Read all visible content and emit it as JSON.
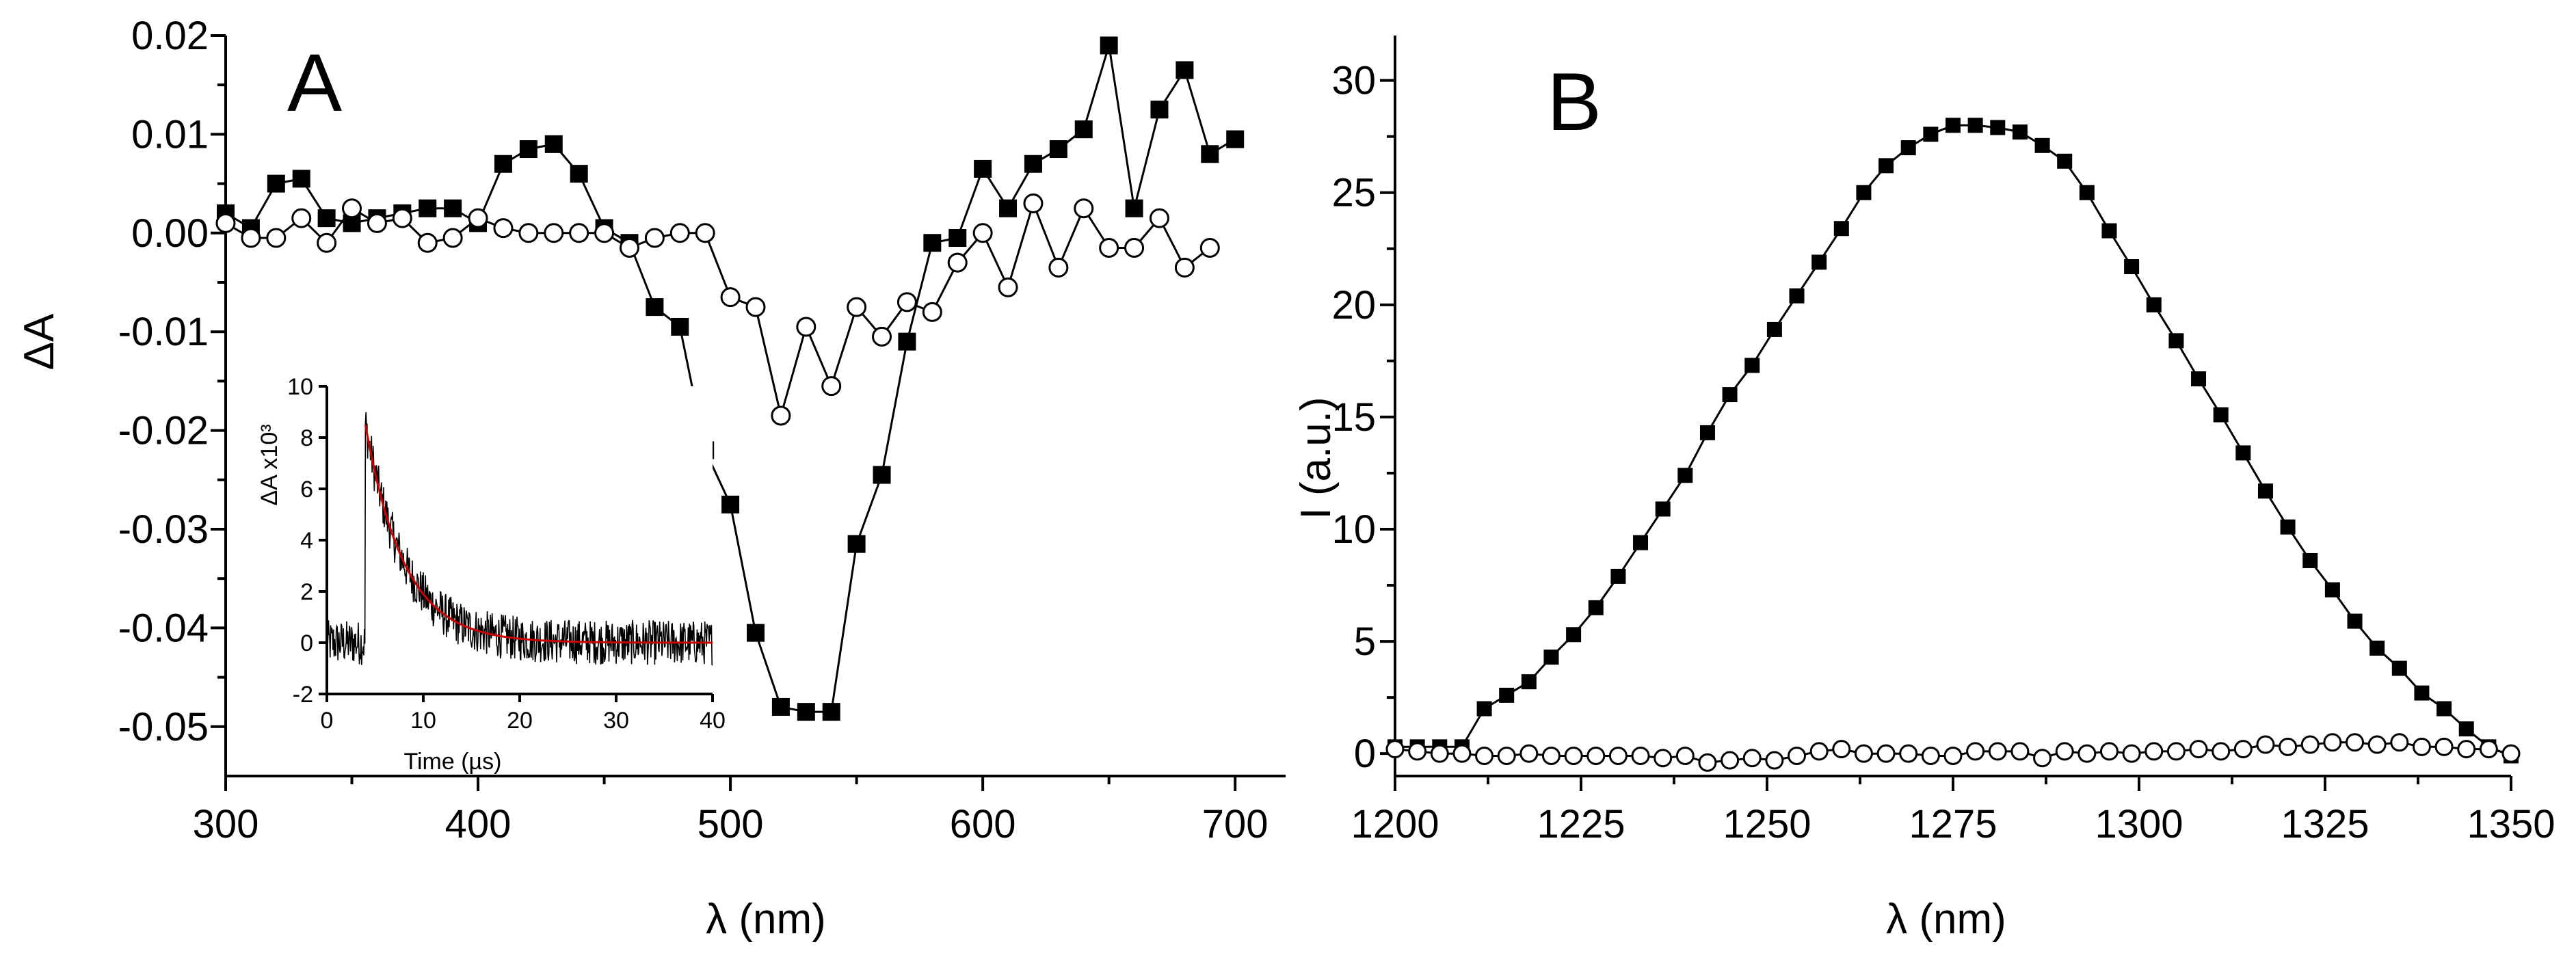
{
  "chart_data": [
    {
      "panel": "A",
      "type": "line",
      "title": "A",
      "xlabel": "λ (nm)",
      "ylabel": "ΔA",
      "xlim": [
        300,
        720
      ],
      "ylim": [
        -0.055,
        0.02
      ],
      "xticks": [
        300,
        400,
        500,
        600,
        700
      ],
      "yticks": [
        0.02,
        0.01,
        0.0,
        -0.01,
        -0.02,
        -0.03,
        -0.04,
        -0.05
      ],
      "xtick_labels": [
        "300",
        "400",
        "500",
        "600",
        "700"
      ],
      "ytick_labels": [
        "0.02",
        "0.01",
        "0.00",
        "-0.01",
        "-0.02",
        "-0.03",
        "-0.04",
        "-0.05"
      ],
      "series": [
        {
          "name": "filled squares",
          "marker": "filled-square",
          "x": [
            300,
            310,
            320,
            330,
            340,
            350,
            360,
            370,
            380,
            390,
            400,
            410,
            420,
            430,
            440,
            450,
            460,
            470,
            480,
            490,
            500,
            510,
            520,
            530,
            540,
            550,
            560,
            570,
            580,
            590,
            600,
            610,
            620,
            630,
            640,
            650,
            660,
            670,
            680,
            690,
            700
          ],
          "y": [
            0.002,
            0.0005,
            0.005,
            0.0055,
            0.0015,
            0.001,
            0.0015,
            0.002,
            0.0025,
            0.0025,
            0.001,
            0.007,
            0.0085,
            0.009,
            0.006,
            0.0005,
            -0.001,
            -0.0075,
            -0.0095,
            -0.022,
            -0.0275,
            -0.0405,
            -0.048,
            -0.0485,
            -0.0485,
            -0.0315,
            -0.0245,
            -0.011,
            -0.001,
            -0.0005,
            0.0065,
            0.0025,
            0.007,
            0.0085,
            0.0105,
            0.019,
            0.0025,
            0.0125,
            0.0165,
            0.008,
            0.0095
          ]
        },
        {
          "name": "open circles",
          "marker": "open-circle",
          "x": [
            300,
            310,
            320,
            330,
            340,
            350,
            360,
            370,
            380,
            390,
            400,
            410,
            420,
            430,
            440,
            450,
            460,
            470,
            480,
            490,
            500,
            510,
            520,
            530,
            540,
            550,
            560,
            570,
            580,
            590,
            600,
            610,
            620,
            630,
            640,
            650,
            660,
            670,
            680,
            690
          ],
          "y": [
            0.001,
            -0.0005,
            -0.0005,
            0.0015,
            -0.001,
            0.0025,
            0.001,
            0.0015,
            -0.001,
            -0.0005,
            0.0015,
            0.0005,
            0.0,
            0.0,
            0.0,
            0.0,
            -0.0015,
            -0.0005,
            0.0,
            0.0,
            -0.0065,
            -0.0075,
            -0.0185,
            -0.0095,
            -0.0155,
            -0.0075,
            -0.0105,
            -0.007,
            -0.008,
            -0.003,
            -0.0,
            -0.0055,
            0.003,
            -0.0035,
            0.0025,
            -0.0015,
            -0.0015,
            0.0015,
            -0.0035,
            -0.0015
          ]
        }
      ],
      "inset": {
        "type": "line",
        "xlabel": "Time (µs)",
        "ylabel": "ΔA x10³",
        "xlim": [
          0,
          40
        ],
        "ylim": [
          -2,
          10
        ],
        "xticks": [
          0,
          10,
          20,
          30,
          40
        ],
        "yticks": [
          -2,
          0,
          2,
          4,
          6,
          8,
          10
        ],
        "xtick_labels": [
          "0",
          "10",
          "20",
          "30",
          "40"
        ],
        "ytick_labels": [
          "-2",
          "0",
          "2",
          "4",
          "6",
          "8",
          "10"
        ],
        "trace": {
          "name": "kinetic trace",
          "color": "#000000",
          "baseline": 0,
          "rise_time": 4,
          "amplitude": 8.5,
          "tau": 4.0,
          "noise": 0.55
        },
        "fit": {
          "name": "exponential fit",
          "color": "#cc0000",
          "start": 4,
          "amplitude": 8.5,
          "tau": 4.0
        }
      }
    },
    {
      "panel": "B",
      "type": "line",
      "title": "B",
      "xlabel": "λ (nm)",
      "ylabel": "I (a.u.)",
      "xlim": [
        1200,
        1350
      ],
      "ylim": [
        -1,
        32
      ],
      "xticks": [
        1200,
        1225,
        1250,
        1275,
        1300,
        1325,
        1350
      ],
      "yticks": [
        0,
        5,
        10,
        15,
        20,
        25,
        30
      ],
      "xtick_labels": [
        "1200",
        "1225",
        "1250",
        "1275",
        "1300",
        "1325",
        "1350"
      ],
      "ytick_labels": [
        "0",
        "5",
        "10",
        "15",
        "20",
        "25",
        "30"
      ],
      "series": [
        {
          "name": "filled squares",
          "marker": "filled-square",
          "x": [
            1200,
            1203,
            1206,
            1209,
            1212,
            1215,
            1218,
            1221,
            1224,
            1227,
            1230,
            1233,
            1236,
            1239,
            1242,
            1245,
            1248,
            1251,
            1254,
            1257,
            1260,
            1263,
            1266,
            1269,
            1272,
            1275,
            1278,
            1281,
            1284,
            1287,
            1290,
            1293,
            1296,
            1299,
            1302,
            1305,
            1308,
            1311,
            1314,
            1317,
            1320,
            1323,
            1326,
            1329,
            1332,
            1335,
            1338,
            1341,
            1344,
            1347,
            1350
          ],
          "y": [
            0.3,
            0.3,
            0.3,
            0.3,
            2.0,
            2.6,
            3.2,
            4.3,
            5.3,
            6.5,
            7.9,
            9.4,
            10.9,
            12.4,
            14.3,
            16.0,
            17.3,
            18.9,
            20.4,
            21.9,
            23.4,
            25.0,
            26.2,
            27.0,
            27.6,
            28.0,
            28.0,
            27.9,
            27.7,
            27.1,
            26.4,
            25.0,
            23.3,
            21.7,
            20.0,
            18.4,
            16.7,
            15.1,
            13.4,
            11.7,
            10.1,
            8.6,
            7.3,
            5.9,
            4.7,
            3.8,
            2.7,
            2.0,
            1.1,
            0.3,
            -0.1
          ]
        },
        {
          "name": "open circles",
          "marker": "open-circle",
          "x": [
            1200,
            1203,
            1206,
            1209,
            1212,
            1215,
            1218,
            1221,
            1224,
            1227,
            1230,
            1233,
            1236,
            1239,
            1242,
            1245,
            1248,
            1251,
            1254,
            1257,
            1260,
            1263,
            1266,
            1269,
            1272,
            1275,
            1278,
            1281,
            1284,
            1287,
            1290,
            1293,
            1296,
            1299,
            1302,
            1305,
            1308,
            1311,
            1314,
            1317,
            1320,
            1323,
            1326,
            1329,
            1332,
            1335,
            1338,
            1341,
            1344,
            1347,
            1350
          ],
          "y": [
            0.2,
            0.1,
            0.0,
            0.0,
            -0.1,
            -0.1,
            0.0,
            -0.1,
            -0.1,
            -0.1,
            -0.1,
            -0.1,
            -0.2,
            -0.1,
            -0.4,
            -0.3,
            -0.2,
            -0.3,
            -0.1,
            0.1,
            0.2,
            0.0,
            0.0,
            0.0,
            -0.1,
            -0.1,
            0.1,
            0.1,
            0.1,
            -0.2,
            0.1,
            0.0,
            0.1,
            0.0,
            0.1,
            0.1,
            0.2,
            0.1,
            0.2,
            0.4,
            0.3,
            0.4,
            0.5,
            0.5,
            0.4,
            0.5,
            0.3,
            0.3,
            0.2,
            0.2,
            0.0
          ]
        }
      ]
    }
  ]
}
